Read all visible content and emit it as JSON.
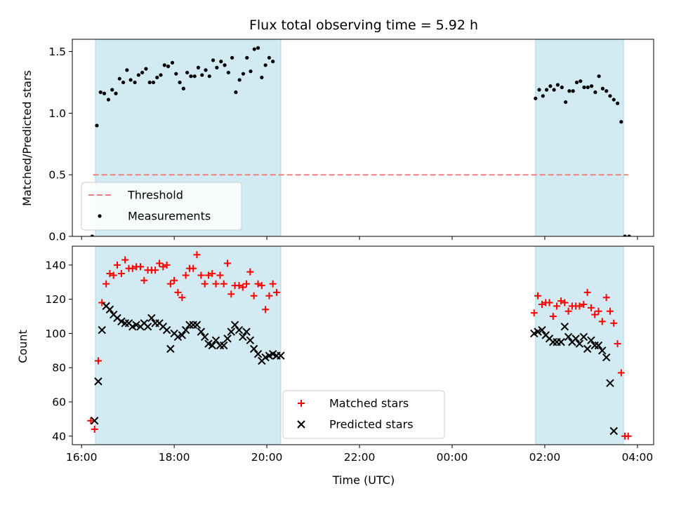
{
  "title": "Flux total observing time = 5.92 h",
  "colors": {
    "band": "#add8e6",
    "threshold": "#f08080",
    "measurement": "#000000",
    "matched": "#ff0000",
    "predicted": "#000000"
  },
  "chart_data": [
    {
      "type": "scatter",
      "panel": "top",
      "ylabel": "Matched/Predicted stars",
      "ylim": [
        0,
        1.6
      ],
      "yticks": [
        0.0,
        0.5,
        1.0,
        1.5
      ],
      "ytick_labels": [
        "0.0",
        "0.5",
        "1.0",
        "1.5"
      ],
      "x_unit": "hours since 00:00 of first day (UTC)",
      "xlim": [
        15.8,
        28.35
      ],
      "observing_windows": [
        [
          16.3,
          20.3
        ],
        [
          25.8,
          27.7
        ]
      ],
      "threshold": {
        "name": "Threshold",
        "y": 0.5,
        "x_range": [
          16.25,
          27.8
        ]
      },
      "legend": {
        "placement": "lower-left",
        "entries": [
          "Threshold",
          "Measurements"
        ]
      },
      "series": [
        {
          "name": "Measurements",
          "marker": "dot",
          "x": [
            16.23,
            16.33,
            16.41,
            16.49,
            16.58,
            16.66,
            16.74,
            16.82,
            16.9,
            16.98,
            17.06,
            17.15,
            17.23,
            17.31,
            17.39,
            17.47,
            17.55,
            17.63,
            17.71,
            17.79,
            17.87,
            17.96,
            18.04,
            18.12,
            18.2,
            18.28,
            18.36,
            18.44,
            18.52,
            18.6,
            18.68,
            18.76,
            18.84,
            18.92,
            19.01,
            19.09,
            19.17,
            19.25,
            19.33,
            19.41,
            19.49,
            19.57,
            19.65,
            19.73,
            19.81,
            19.89,
            19.97,
            20.05,
            20.13,
            20.21,
            20.3,
            25.8,
            25.88,
            25.96,
            26.04,
            26.12,
            26.2,
            26.28,
            26.37,
            26.45,
            26.53,
            26.61,
            26.69,
            26.77,
            26.85,
            26.93,
            27.01,
            27.09,
            27.17,
            27.25,
            27.33,
            27.41,
            27.49,
            27.57,
            27.65,
            27.73,
            27.82
          ],
          "y": [
            0,
            0.9,
            1.17,
            1.16,
            1.11,
            1.19,
            1.16,
            1.28,
            1.25,
            1.35,
            1.27,
            1.25,
            1.31,
            1.33,
            1.36,
            1.25,
            1.25,
            1.29,
            1.31,
            1.39,
            1.38,
            1.41,
            1.32,
            1.25,
            1.2,
            1.33,
            1.3,
            1.3,
            1.37,
            1.31,
            1.35,
            1.3,
            1.43,
            1.37,
            1.42,
            1.39,
            1.33,
            1.45,
            1.17,
            1.27,
            1.32,
            1.45,
            1.34,
            1.52,
            1.53,
            1.29,
            1.39,
            1.45,
            1.42,
            null,
            null,
            1.12,
            1.19,
            1.14,
            1.19,
            1.22,
            1.19,
            1.23,
            1.21,
            1.09,
            1.18,
            1.18,
            1.25,
            1.26,
            1.21,
            1.21,
            1.22,
            1.17,
            1.3,
            1.2,
            1.18,
            1.14,
            1.11,
            1.08,
            0.93,
            0,
            0
          ]
        }
      ]
    },
    {
      "type": "scatter",
      "panel": "bottom",
      "xlabel": "Time (UTC)",
      "ylabel": "Count",
      "ylim": [
        35,
        151
      ],
      "yticks": [
        40,
        60,
        80,
        100,
        120,
        140
      ],
      "ytick_labels": [
        "40",
        "60",
        "80",
        "100",
        "120",
        "140"
      ],
      "x_unit": "hours since 00:00 of first day (UTC)",
      "xlim": [
        15.8,
        28.35
      ],
      "xticks": [
        16,
        18,
        20,
        22,
        24,
        26,
        28
      ],
      "xtick_labels": [
        "16:00",
        "18:00",
        "20:00",
        "22:00",
        "00:00",
        "02:00",
        "04:00"
      ],
      "observing_windows": [
        [
          16.3,
          20.3
        ],
        [
          25.8,
          27.7
        ]
      ],
      "legend": {
        "placement": "lower-center",
        "entries": [
          "Matched stars",
          "Predicted stars"
        ]
      },
      "series": [
        {
          "name": "Matched stars",
          "marker": "plus",
          "x": [
            16.2,
            16.28,
            16.36,
            16.44,
            16.53,
            16.61,
            16.69,
            16.77,
            16.86,
            16.94,
            17.02,
            17.1,
            17.18,
            17.27,
            17.35,
            17.43,
            17.51,
            17.59,
            17.68,
            17.76,
            17.84,
            17.92,
            18.0,
            18.08,
            18.17,
            18.25,
            18.33,
            18.41,
            18.49,
            18.58,
            18.66,
            18.74,
            18.82,
            18.9,
            18.99,
            19.07,
            19.15,
            19.23,
            19.31,
            19.4,
            19.48,
            19.56,
            19.64,
            19.72,
            19.81,
            19.89,
            19.97,
            20.05,
            20.13,
            20.21,
            20.3,
            25.77,
            25.85,
            25.94,
            26.02,
            26.1,
            26.18,
            26.26,
            26.35,
            26.43,
            26.51,
            26.59,
            26.67,
            26.75,
            26.84,
            26.92,
            27.0,
            27.08,
            27.16,
            27.24,
            27.33,
            27.41,
            27.49,
            27.57,
            27.65,
            27.73,
            27.8,
            27.86
          ],
          "y": [
            49,
            44,
            84,
            118,
            129,
            135,
            134,
            140,
            135,
            143,
            138,
            138,
            139,
            139,
            131,
            137,
            137,
            137,
            141,
            139,
            140,
            129,
            131,
            124,
            121,
            134,
            138,
            138,
            146,
            134,
            129,
            134,
            135,
            129,
            134,
            129,
            141,
            123,
            128,
            128,
            127,
            129,
            136,
            122,
            129,
            128,
            114,
            122,
            129,
            124,
            null,
            112,
            122,
            117,
            118,
            118,
            110,
            116,
            119,
            118,
            113,
            116,
            116,
            116,
            117,
            124,
            115,
            111,
            113,
            107,
            121,
            113,
            106,
            94,
            77,
            40,
            40,
            null
          ]
        },
        {
          "name": "Predicted stars",
          "marker": "x",
          "x": [
            16.2,
            16.28,
            16.36,
            16.44,
            16.53,
            16.61,
            16.69,
            16.77,
            16.86,
            16.94,
            17.02,
            17.1,
            17.18,
            17.27,
            17.35,
            17.43,
            17.51,
            17.59,
            17.68,
            17.76,
            17.84,
            17.92,
            18.0,
            18.08,
            18.17,
            18.25,
            18.33,
            18.41,
            18.49,
            18.58,
            18.66,
            18.74,
            18.82,
            18.9,
            18.99,
            19.07,
            19.15,
            19.23,
            19.31,
            19.4,
            19.48,
            19.56,
            19.64,
            19.72,
            19.81,
            19.89,
            19.97,
            20.05,
            20.13,
            20.21,
            20.3,
            25.77,
            25.85,
            25.94,
            26.02,
            26.1,
            26.18,
            26.26,
            26.35,
            26.43,
            26.51,
            26.59,
            26.67,
            26.75,
            26.84,
            26.92,
            27.0,
            27.08,
            27.16,
            27.24,
            27.33,
            27.41,
            27.49,
            27.57,
            27.65,
            27.73,
            27.8,
            27.86
          ],
          "y": [
            null,
            49,
            72,
            102,
            116,
            114,
            111,
            109,
            107,
            106,
            106,
            104,
            105,
            104,
            106,
            104,
            109,
            106,
            106,
            104,
            102,
            91,
            100,
            98,
            99,
            102,
            105,
            105,
            105,
            101,
            98,
            94,
            93,
            96,
            93,
            93,
            97,
            101,
            105,
            102,
            98,
            101,
            96,
            91,
            88,
            84,
            86,
            87,
            88,
            87,
            87,
            100,
            101,
            102,
            99,
            97,
            95,
            95,
            95,
            104,
            98,
            95,
            97,
            94,
            98,
            91,
            96,
            93,
            93,
            90,
            86,
            71,
            43,
            null,
            null,
            null,
            null,
            null
          ]
        }
      ]
    }
  ]
}
